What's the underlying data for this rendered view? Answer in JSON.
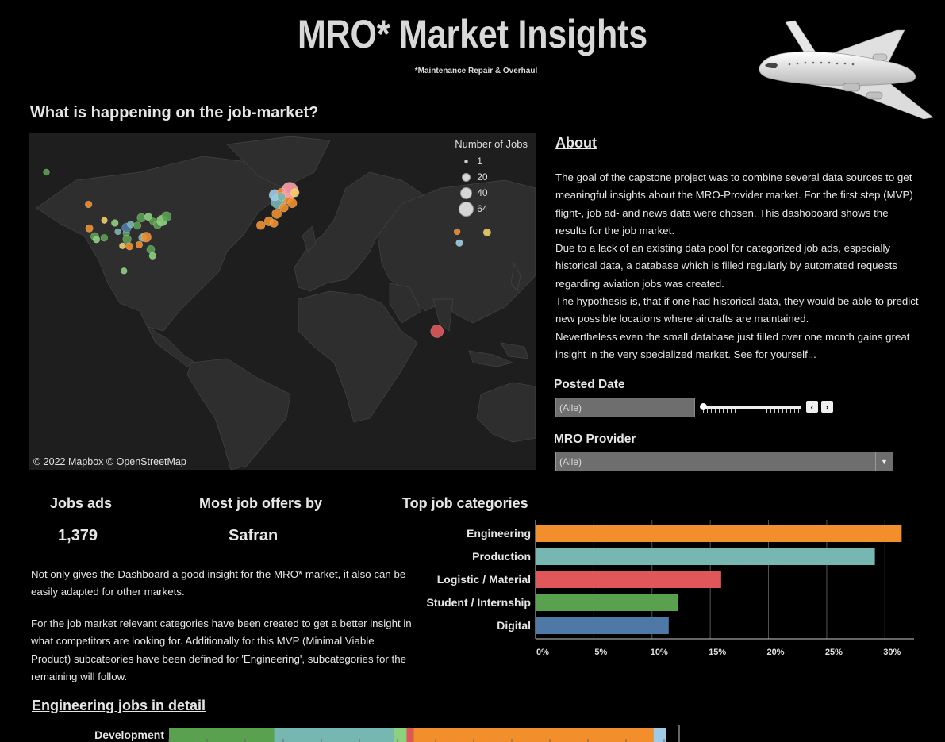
{
  "header": {
    "title": "MRO* Market Insights",
    "subtitle": "*Maintenance Repair & Overhaul"
  },
  "map_section": {
    "heading": "What is happening on the job-market?",
    "credit": "© 2022 Mapbox © OpenStreetMap",
    "legend": {
      "title": "Number of Jobs",
      "entries": [
        "1",
        "20",
        "40",
        "64"
      ]
    }
  },
  "about": {
    "heading": "About",
    "paragraphs": [
      "The goal of the capstone project was to combine several data sources to get meaningful insights about the MRO-Provider market. For the first step (MVP) flight-, job ad- and news data were chosen.  This dashoboard shows the results for the job market.",
      "Due to a lack of an existing data pool for categorized job ads, especially historical data, a database which is filled regularly by automated requests regarding aviation jobs was created.",
      "The hypothesis is, that if one had historical data, they would be able to predict new possible locations where aircrafts are maintained.",
      "Nevertheless even the small database just filled over one month gains great insight in the very specialized market. See for yourself..."
    ]
  },
  "filters": {
    "posted_date_label": "Posted Date",
    "posted_date_value": "(Alle)",
    "mro_provider_label": "MRO Provider",
    "mro_provider_value": "(Alle)",
    "prev_icon": "chevron-left-icon",
    "next_icon": "chevron-right-icon"
  },
  "kpis": {
    "jobs_ads_label": "Jobs ads",
    "jobs_ads_value": "1,379",
    "most_offers_label": "Most job offers by",
    "most_offers_value": "Safran",
    "top_categories_label": "Top job categories"
  },
  "notes": {
    "p1": "Not only gives the Dashboard a good insight for the MRO* market, it also can be easily adapted for other markets.",
    "p2": "For the job market relevant categories have been created to get a better insight in what competitors are looking for. Additionally for this MVP (Minimal Viable Product) subcateories have been defined for 'Engineering', subcategories for the remaining will follow."
  },
  "engineering": {
    "heading": "Engineering jobs in detail",
    "row_label": "Development"
  },
  "chart_data": [
    {
      "type": "bar",
      "orientation": "horizontal",
      "categories": [
        "Engineering",
        "Production",
        "Logistic / Material",
        "Student / Internship",
        "Digital"
      ],
      "values": [
        31.4,
        29.1,
        15.9,
        12.2,
        11.4
      ],
      "colors": [
        "#f28e2b",
        "#76b7b2",
        "#e15759",
        "#59a14f",
        "#4e79a7"
      ],
      "x_ticks": [
        "0%",
        "5%",
        "10%",
        "15%",
        "20%",
        "25%",
        "30%"
      ],
      "xlim": [
        0,
        32.5
      ],
      "grid": "vertical"
    },
    {
      "type": "bar",
      "orientation": "horizontal-stacked",
      "categories": [
        "Development"
      ],
      "segments": [
        {
          "value": 9.2,
          "color": "#59a14f"
        },
        {
          "value": 10.5,
          "color": "#76b7b2"
        },
        {
          "value": 1.1,
          "color": "#8cd17d"
        },
        {
          "value": 0.6,
          "color": "#e15759"
        },
        {
          "value": 21.0,
          "color": "#f28e2b"
        },
        {
          "value": 1.1,
          "color": "#a0cbe8"
        }
      ]
    }
  ],
  "map_points": [
    {
      "lon": -122.3,
      "lat": 47.6,
      "jobs": 3,
      "color": "#f28e2b"
    },
    {
      "lon": -121.8,
      "lat": 37.4,
      "jobs": 4,
      "color": "#f28e2b"
    },
    {
      "lon": -118.2,
      "lat": 34.0,
      "jobs": 5,
      "color": "#59a14f"
    },
    {
      "lon": -117.1,
      "lat": 32.7,
      "jobs": 3,
      "color": "#8cd17d"
    },
    {
      "lon": -112.0,
      "lat": 33.4,
      "jobs": 3,
      "color": "#59a14f"
    },
    {
      "lon": -111.9,
      "lat": 40.8,
      "jobs": 2,
      "color": "#f1ce63"
    },
    {
      "lon": -105.0,
      "lat": 39.7,
      "jobs": 3,
      "color": "#8cd17d"
    },
    {
      "lon": -97.5,
      "lat": 35.4,
      "jobs": 3,
      "color": "#59a14f"
    },
    {
      "lon": -97.0,
      "lat": 32.8,
      "jobs": 6,
      "color": "#59a14f"
    },
    {
      "lon": -95.4,
      "lat": 29.8,
      "jobs": 4,
      "color": "#f28e2b"
    },
    {
      "lon": -97.3,
      "lat": 37.7,
      "jobs": 8,
      "color": "#4e79a7"
    },
    {
      "lon": -94.6,
      "lat": 39.1,
      "jobs": 3,
      "color": "#76b7b2"
    },
    {
      "lon": -90.2,
      "lat": 38.6,
      "jobs": 4,
      "color": "#59a14f"
    },
    {
      "lon": -87.6,
      "lat": 41.9,
      "jobs": 6,
      "color": "#59a14f"
    },
    {
      "lon": -86.8,
      "lat": 33.5,
      "jobs": 5,
      "color": "#76b7b2"
    },
    {
      "lon": -84.4,
      "lat": 33.7,
      "jobs": 10,
      "color": "#f28e2b"
    },
    {
      "lon": -81.4,
      "lat": 28.5,
      "jobs": 5,
      "color": "#59a14f"
    },
    {
      "lon": -80.2,
      "lat": 25.8,
      "jobs": 3,
      "color": "#8cd17d"
    },
    {
      "lon": -83.0,
      "lat": 42.3,
      "jobs": 4,
      "color": "#8cd17d"
    },
    {
      "lon": -80.0,
      "lat": 40.4,
      "jobs": 3,
      "color": "#59a14f"
    },
    {
      "lon": -77.0,
      "lat": 38.9,
      "jobs": 5,
      "color": "#59a14f"
    },
    {
      "lon": -74.0,
      "lat": 40.7,
      "jobs": 12,
      "color": "#8cd17d"
    },
    {
      "lon": -71.1,
      "lat": 42.4,
      "jobs": 9,
      "color": "#59a14f"
    },
    {
      "lon": -100.0,
      "lat": 30.0,
      "jobs": 2,
      "color": "#f1ce63"
    },
    {
      "lon": -103.0,
      "lat": 36.0,
      "jobs": 2,
      "color": "#76b7b2"
    },
    {
      "lon": -89.0,
      "lat": 30.5,
      "jobs": 3,
      "color": "#f28e2b"
    },
    {
      "lon": -99.0,
      "lat": 19.4,
      "jobs": 2,
      "color": "#8cd17d"
    },
    {
      "lon": -150.0,
      "lat": 61.2,
      "jobs": 2,
      "color": "#59a14f"
    },
    {
      "lon": -3.7,
      "lat": 40.4,
      "jobs": 8,
      "color": "#f28e2b"
    },
    {
      "lon": -9.1,
      "lat": 38.7,
      "jobs": 6,
      "color": "#f28e2b"
    },
    {
      "lon": -0.4,
      "lat": 39.5,
      "jobs": 5,
      "color": "#f28e2b"
    },
    {
      "lon": 1.4,
      "lat": 43.6,
      "jobs": 9,
      "color": "#f28e2b"
    },
    {
      "lon": 2.4,
      "lat": 48.9,
      "jobs": 30,
      "color": "#76b7b2"
    },
    {
      "lon": 0.1,
      "lat": 51.5,
      "jobs": 14,
      "color": "#a0cbe8"
    },
    {
      "lon": 4.9,
      "lat": 52.4,
      "jobs": 10,
      "color": "#f28e2b"
    },
    {
      "lon": 8.7,
      "lat": 50.1,
      "jobs": 12,
      "color": "#f28e2b"
    },
    {
      "lon": 10.0,
      "lat": 53.6,
      "jobs": 36,
      "color": "#ff9da7"
    },
    {
      "lon": 11.6,
      "lat": 48.1,
      "jobs": 8,
      "color": "#f28e2b"
    },
    {
      "lon": 13.4,
      "lat": 52.5,
      "jobs": 6,
      "color": "#f1ce63"
    },
    {
      "lon": 6.1,
      "lat": 46.2,
      "jobs": 7,
      "color": "#f28e2b"
    },
    {
      "lon": 4.4,
      "lat": 50.8,
      "jobs": 6,
      "color": "#76b7b2"
    },
    {
      "lon": 121.5,
      "lat": 31.2,
      "jobs": 3,
      "color": "#a0cbe8"
    },
    {
      "lon": 120.0,
      "lat": 36.0,
      "jobs": 2,
      "color": "#f28e2b"
    },
    {
      "lon": 139.7,
      "lat": 35.7,
      "jobs": 4,
      "color": "#f1ce63"
    },
    {
      "lon": 106.8,
      "lat": -6.2,
      "jobs": 20,
      "color": "#e15759"
    }
  ]
}
